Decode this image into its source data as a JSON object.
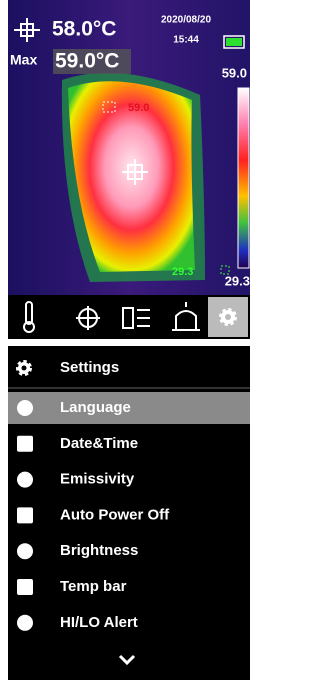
{
  "status_bar": {
    "center_temp": "58.0°C",
    "date": "2020/08/20",
    "time": "15:44",
    "max_label": "Max",
    "max_temp": "59.0°C"
  },
  "color_scale": {
    "max": "59.0",
    "min": "29.3"
  },
  "image": {
    "hotspot_label": "59.0",
    "coldspot_label": "29.3"
  },
  "settings": {
    "title": "Settings",
    "items": [
      "Language",
      "Date&Time",
      "Emissivity",
      "Auto Power Off",
      "Brightness",
      "Temp bar",
      "HI/LO Alert"
    ]
  }
}
